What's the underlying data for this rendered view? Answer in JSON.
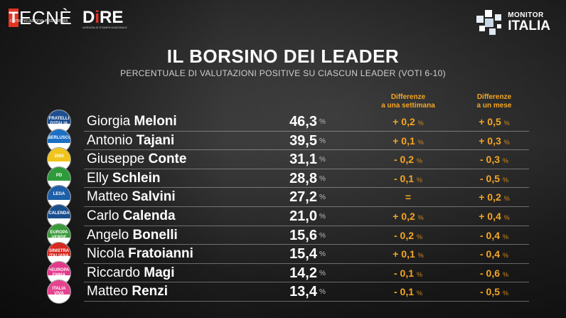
{
  "header": {
    "tecne_box": "T",
    "tecne_word": "ECNÈ",
    "tecne_sub": "comunicazione e strategia",
    "dire_a": "D",
    "dire_b": "i",
    "dire_c": "RE",
    "dire_sub": "AGENZIA DI STAMPA NAZIONALE",
    "monitor_line1": "MONITOR",
    "monitor_line2": "ITALIA"
  },
  "colors": {
    "accent": "#f5a623",
    "brand_red": "#e53322",
    "logo_blue": "#1d5fa8"
  },
  "chart_data": {
    "type": "table",
    "title": "IL BORSINO DEI LEADER",
    "subtitle": "PERCENTUALE DI VALUTAZIONI POSITIVE SU CIASCUN LEADER (VOTI 6-10)",
    "columns": [
      "",
      "",
      "Differenze a una settimana",
      "Differenze a un mese"
    ],
    "col_week_l1": "Differenze",
    "col_week_l2": "a una settimana",
    "col_month_l1": "Differenze",
    "col_month_l2": "a un mese",
    "unit": "%",
    "rows": [
      {
        "first": "Giorgia",
        "last": "Meloni",
        "value": "46,3",
        "week": "+ 0,2",
        "month": "+ 0,5",
        "logo": "FRATELLI D'ITALIA GIORGIA MELONI",
        "logo_color": "#1d4f91"
      },
      {
        "first": "Antonio",
        "last": "Tajani",
        "value": "39,5",
        "week": "+ 0,1",
        "month": "+ 0,3",
        "logo": "BERLUSCONI",
        "logo_color": "#1c6fc2"
      },
      {
        "first": "Giuseppe",
        "last": "Conte",
        "value": "31,1",
        "week": "- 0,2",
        "month": "- 0,3",
        "logo": "2050",
        "logo_color": "#f0c419"
      },
      {
        "first": "Elly",
        "last": "Schlein",
        "value": "28,8",
        "week": "- 0,1",
        "month": "- 0,5",
        "logo": "PD",
        "logo_color": "#2e9b3b"
      },
      {
        "first": "Matteo",
        "last": "Salvini",
        "value": "27,2",
        "week": "=",
        "month": "+ 0,2",
        "logo": "LEGA",
        "logo_color": "#1d5fa8"
      },
      {
        "first": "Carlo",
        "last": "Calenda",
        "value": "21,0",
        "week": "+ 0,2",
        "month": "+ 0,4",
        "logo": "CALENDA",
        "logo_color": "#1a4f8e"
      },
      {
        "first": "Angelo",
        "last": "Bonelli",
        "value": "15,6",
        "week": "- 0,2",
        "month": "- 0,4",
        "logo": "EUROPA VERDE",
        "logo_color": "#3a9a3a"
      },
      {
        "first": "Nicola",
        "last": "Fratoianni",
        "value": "15,4",
        "week": "+ 0,1",
        "month": "- 0,4",
        "logo": "SINISTRA ITALIANA",
        "logo_color": "#d8281f"
      },
      {
        "first": "Riccardo",
        "last": "Magi",
        "value": "14,2",
        "week": "- 0,1",
        "month": "- 0,6",
        "logo": "+EUROPA EMMA BONINO",
        "logo_color": "#e23a8b"
      },
      {
        "first": "Matteo",
        "last": "Renzi",
        "value": "13,4",
        "week": "- 0,1",
        "month": "- 0,5",
        "logo": "ITALIA VIVA",
        "logo_color": "#e5438f"
      }
    ]
  }
}
